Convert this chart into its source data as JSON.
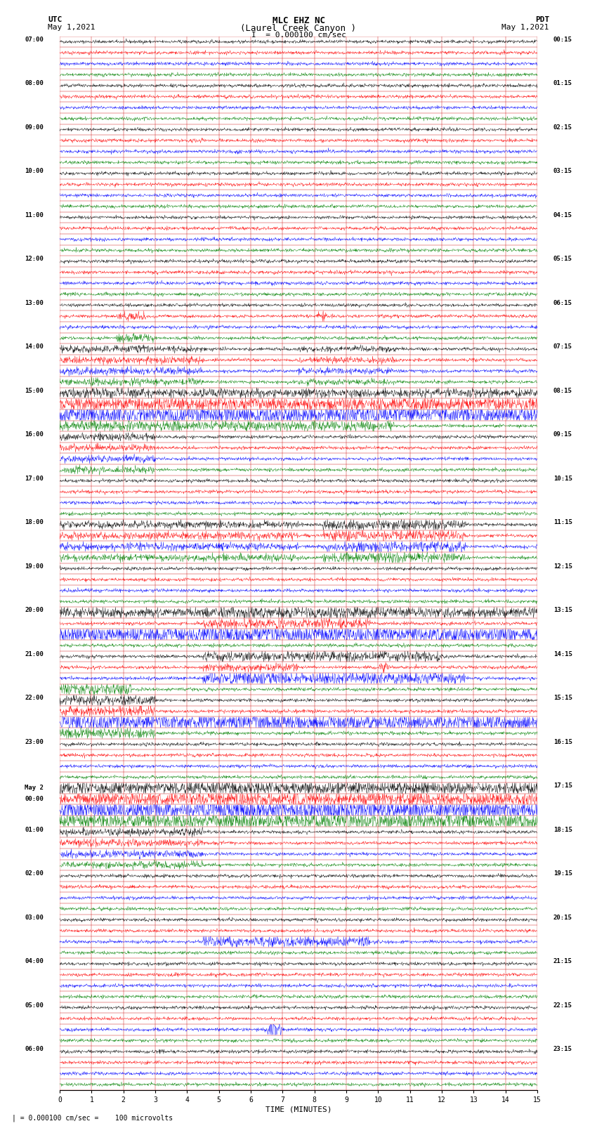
{
  "title_line1": "MLC EHZ NC",
  "title_line2": "(Laurel Creek Canyon )",
  "title_line3": "I  = 0.000100 cm/sec",
  "left_label_top": "UTC",
  "left_label_date": "May 1,2021",
  "right_label_top": "PDT",
  "right_label_date": "May 1,2021",
  "bottom_label": "TIME (MINUTES)",
  "scale_label": "| = 0.000100 cm/sec =    100 microvolts",
  "colors": [
    "black",
    "red",
    "blue",
    "green"
  ],
  "bg_color": "#ffffff",
  "n_rows": 96,
  "n_cols": 15,
  "xlim": [
    0,
    15
  ],
  "xticks": [
    0,
    1,
    2,
    3,
    4,
    5,
    6,
    7,
    8,
    9,
    10,
    11,
    12,
    13,
    14,
    15
  ],
  "utc_label_rows": [
    0,
    4,
    8,
    12,
    16,
    20,
    24,
    28,
    32,
    36,
    40,
    44,
    48,
    52,
    56,
    60,
    64,
    68,
    72,
    76,
    80,
    84,
    88,
    92
  ],
  "utc_labels_text": [
    "07:00",
    "08:00",
    "09:00",
    "10:00",
    "11:00",
    "12:00",
    "13:00",
    "14:00",
    "15:00",
    "16:00",
    "17:00",
    "18:00",
    "19:00",
    "20:00",
    "21:00",
    "22:00",
    "23:00",
    "May 2\n00:00",
    "01:00",
    "02:00",
    "03:00",
    "04:00",
    "05:00",
    "06:00"
  ],
  "pdt_labels_text": [
    "00:15",
    "01:15",
    "02:15",
    "03:15",
    "04:15",
    "05:15",
    "06:15",
    "07:15",
    "08:15",
    "09:15",
    "10:15",
    "11:15",
    "12:15",
    "13:15",
    "14:15",
    "15:15",
    "16:15",
    "17:15",
    "18:15",
    "19:15",
    "20:15",
    "21:15",
    "22:15",
    "23:15"
  ]
}
